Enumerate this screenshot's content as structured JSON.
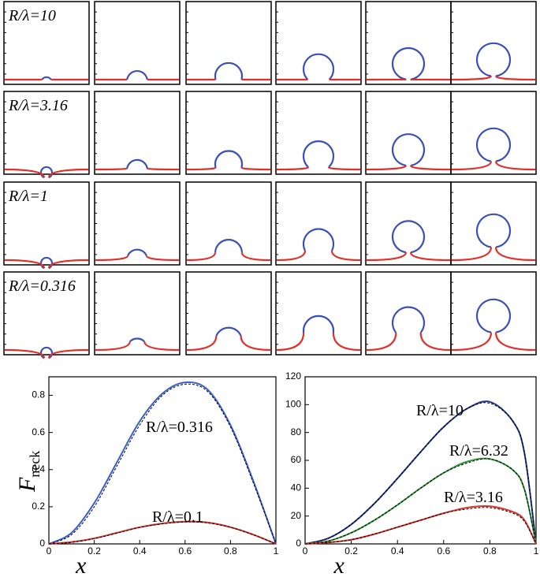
{
  "shape_grid": {
    "row_labels": [
      "R/λ=10",
      "R/λ=3.16",
      "R/λ=1",
      "R/λ=0.316"
    ]
  },
  "chart_data": [
    {
      "type": "line",
      "x_label": "x",
      "y_label": "F",
      "y_label_subscript": "neck",
      "x": [
        0,
        0.1,
        0.2,
        0.3,
        0.4,
        0.5,
        0.6,
        0.7,
        0.8,
        0.9,
        1
      ],
      "xlim": [
        0,
        1
      ],
      "xticks": [
        0,
        0.2,
        0.4,
        0.6,
        0.8,
        1
      ],
      "ylim": [
        0,
        0.9
      ],
      "yticks": [
        0,
        0.2,
        0.4,
        0.6,
        0.8
      ],
      "series": [
        {
          "name": "R/λ=0.316",
          "color": "#3a5fcd",
          "values": [
            0,
            0.06,
            0.22,
            0.44,
            0.66,
            0.81,
            0.87,
            0.83,
            0.64,
            0.34,
            0
          ]
        },
        {
          "color": "#000000",
          "style": "dashed",
          "values": [
            0,
            0.05,
            0.2,
            0.42,
            0.64,
            0.8,
            0.86,
            0.82,
            0.63,
            0.33,
            0
          ]
        },
        {
          "name": "R/λ=0.1",
          "color": "#e0302a",
          "values": [
            0,
            0.01,
            0.03,
            0.06,
            0.09,
            0.11,
            0.12,
            0.115,
            0.09,
            0.05,
            0
          ]
        },
        {
          "color": "#000000",
          "style": "dashed",
          "values": [
            0,
            0.008,
            0.028,
            0.058,
            0.088,
            0.108,
            0.118,
            0.113,
            0.089,
            0.049,
            0
          ]
        }
      ]
    },
    {
      "type": "line",
      "x_label": "x",
      "x": [
        0,
        0.1,
        0.2,
        0.3,
        0.4,
        0.5,
        0.6,
        0.7,
        0.8,
        0.9,
        0.95,
        1
      ],
      "xlim": [
        0,
        1
      ],
      "xticks": [
        0,
        0.2,
        0.4,
        0.6,
        0.8,
        1
      ],
      "ylim": [
        0,
        120
      ],
      "yticks": [
        0,
        20,
        40,
        60,
        80,
        100,
        120
      ],
      "series": [
        {
          "name": "R/λ=10",
          "color": "#1f3a93",
          "values": [
            0,
            4,
            14,
            29,
            47,
            66,
            84,
            97,
            102,
            88,
            65,
            0
          ]
        },
        {
          "color": "#000000",
          "style": "dashed",
          "values": [
            0,
            4,
            14,
            29,
            47,
            66,
            84,
            97,
            101,
            88,
            65,
            0
          ]
        },
        {
          "name": "R/λ=6.32",
          "color": "#2e9b3a",
          "values": [
            0,
            2,
            8,
            17,
            28,
            40,
            51,
            59,
            61,
            53,
            39,
            0
          ]
        },
        {
          "color": "#000000",
          "style": "dashed",
          "values": [
            0,
            2,
            8,
            17,
            28,
            40,
            51,
            58,
            61,
            53,
            39,
            0
          ]
        },
        {
          "name": "R/λ=3.16",
          "color": "#e0302a",
          "values": [
            0,
            1,
            3,
            7,
            12,
            17,
            22,
            26,
            27,
            23,
            17,
            0
          ]
        },
        {
          "color": "#000000",
          "style": "dashed",
          "values": [
            0,
            1,
            3,
            7,
            12,
            17,
            22,
            25,
            26,
            22,
            16,
            0
          ]
        }
      ]
    }
  ]
}
